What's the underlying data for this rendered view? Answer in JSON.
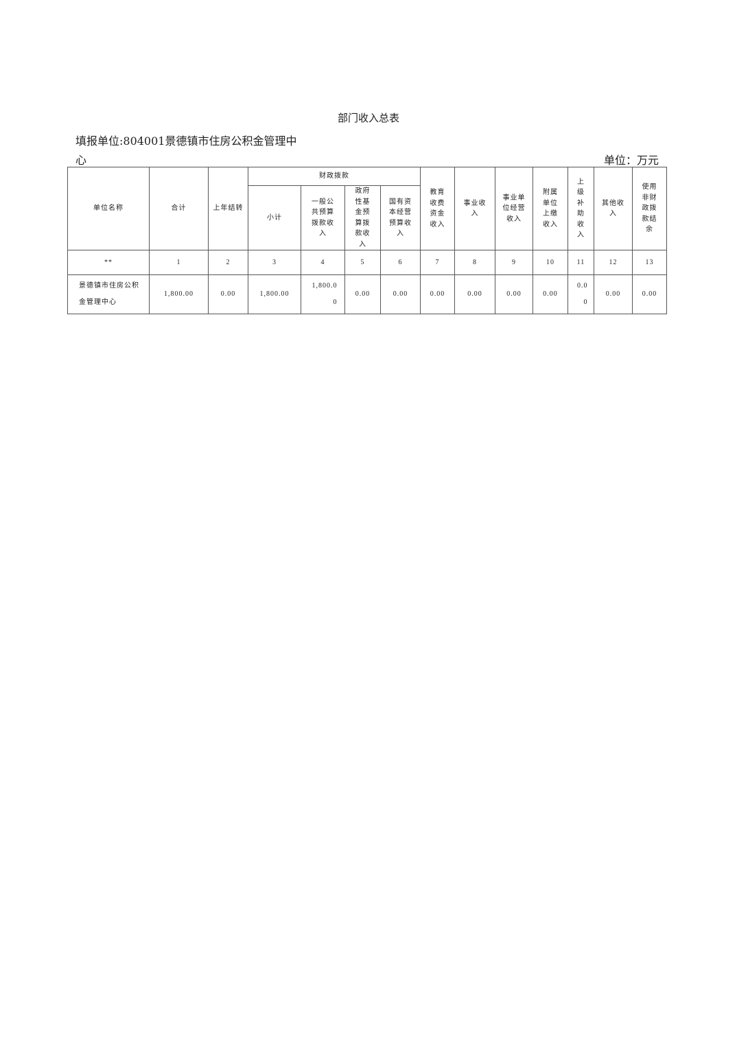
{
  "title": "部门收入总表",
  "reporting_unit": "填报单位:804001景德镇市住房公积金管理中心",
  "unit_label": "单位：万元",
  "table": {
    "header_group": "财政拨款",
    "columns": [
      "单位名称",
      "合计",
      "上年结转",
      "小计",
      "一般公共预算拨款收入",
      "政府性基金预算拨款收入",
      "国有资本经营预算收入",
      "教育收费资金收入",
      "事业收入",
      "事业单位经营收入",
      "附属单位上缴收入",
      "上级补助收入",
      "其他收入",
      "使用非财政拨款结余"
    ],
    "index_row": [
      "**",
      "1",
      "2",
      "3",
      "4",
      "5",
      "6",
      "7",
      "8",
      "9",
      "10",
      "11",
      "12",
      "13"
    ],
    "rows": [
      [
        "景德镇市住房公积金管理中心",
        "1,800.00",
        "0.00",
        "1,800.00",
        "1,800.00",
        "0.00",
        "0.00",
        "0.00",
        "0.00",
        "0.00",
        "0.00",
        "0.00",
        "0.00",
        "0.00"
      ]
    ]
  }
}
